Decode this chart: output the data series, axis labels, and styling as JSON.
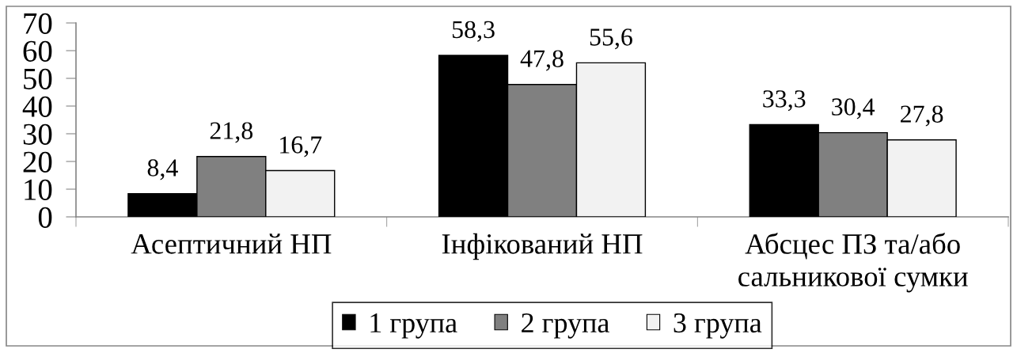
{
  "chart_data": {
    "type": "bar",
    "categories": [
      "Асептичний НП",
      "Інфікований НП",
      "Абсцес ПЗ та/або\nсальникової сумки"
    ],
    "series": [
      {
        "name": "1 група",
        "color": "#000000",
        "values": [
          8.4,
          58.3,
          33.3
        ],
        "value_labels": [
          "8,4",
          "58,3",
          "33,3"
        ]
      },
      {
        "name": "2 група",
        "color": "#808080",
        "values": [
          21.8,
          47.8,
          30.4
        ],
        "value_labels": [
          "21,8",
          "47,8",
          "30,4"
        ]
      },
      {
        "name": "3 група",
        "color": "#f2f2f2",
        "values": [
          16.7,
          55.6,
          27.8
        ],
        "value_labels": [
          "16,7",
          "55,6",
          "27,8"
        ]
      }
    ],
    "ylim": [
      0,
      70
    ],
    "yticks": [
      0,
      10,
      20,
      30,
      40,
      50,
      60,
      70
    ],
    "grid": false,
    "legend": "bottom"
  }
}
